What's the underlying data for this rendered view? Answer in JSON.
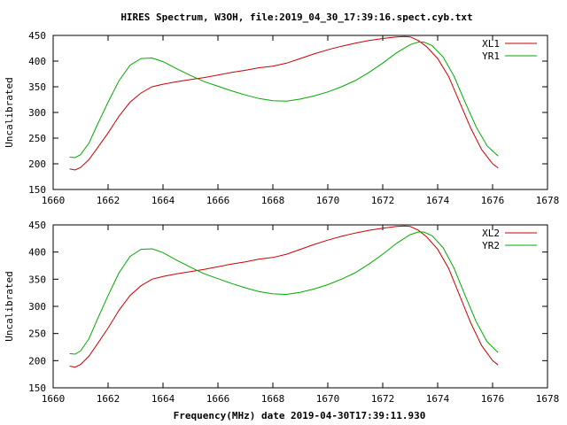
{
  "title": "HIRES Spectrum, W3OH, file:2019_04_30_17:39:16.spect.cyb.txt",
  "xlabel": "Frequency(MHz) date 2019-04-30T17:39:11.930",
  "colors": {
    "red": "#cc0000",
    "green": "#00aa00",
    "axis": "#000000"
  },
  "chart_data": [
    {
      "type": "line",
      "xlim": [
        1660,
        1678
      ],
      "ylim": [
        150,
        450
      ],
      "xticks": [
        1660,
        1662,
        1664,
        1666,
        1668,
        1670,
        1672,
        1674,
        1676,
        1678
      ],
      "yticks": [
        150,
        200,
        250,
        300,
        350,
        400,
        450
      ],
      "ylabel": "Uncalibrated",
      "legend_position": "top-right",
      "grid": false,
      "series": [
        {
          "name": "XL1",
          "color": "#cc0000",
          "x": [
            1660.6,
            1660.8,
            1661.0,
            1661.3,
            1661.6,
            1662.0,
            1662.4,
            1662.8,
            1663.2,
            1663.6,
            1664.0,
            1664.5,
            1665.0,
            1665.5,
            1666.0,
            1666.5,
            1667.0,
            1667.5,
            1668.0,
            1668.5,
            1669.0,
            1669.5,
            1670.0,
            1670.5,
            1671.0,
            1671.5,
            1672.0,
            1672.5,
            1672.8,
            1673.0,
            1673.3,
            1673.6,
            1674.0,
            1674.4,
            1674.8,
            1675.2,
            1675.6,
            1676.0,
            1676.2
          ],
          "y": [
            190,
            188,
            193,
            208,
            230,
            260,
            293,
            320,
            338,
            350,
            355,
            360,
            364,
            368,
            373,
            378,
            382,
            387,
            390,
            396,
            405,
            414,
            422,
            429,
            435,
            440,
            444,
            447,
            448,
            447,
            440,
            428,
            405,
            370,
            320,
            270,
            228,
            200,
            192
          ]
        },
        {
          "name": "YR1",
          "color": "#00aa00",
          "x": [
            1660.6,
            1660.8,
            1661.0,
            1661.3,
            1661.6,
            1662.0,
            1662.4,
            1662.8,
            1663.2,
            1663.6,
            1664.0,
            1664.5,
            1665.0,
            1665.5,
            1666.0,
            1666.5,
            1667.0,
            1667.5,
            1668.0,
            1668.5,
            1669.0,
            1669.5,
            1670.0,
            1670.5,
            1671.0,
            1671.5,
            1672.0,
            1672.5,
            1673.0,
            1673.3,
            1673.5,
            1673.8,
            1674.2,
            1674.6,
            1675.0,
            1675.4,
            1675.8,
            1676.2
          ],
          "y": [
            213,
            212,
            218,
            240,
            275,
            320,
            362,
            392,
            405,
            406,
            399,
            385,
            372,
            360,
            351,
            342,
            334,
            327,
            323,
            322,
            326,
            332,
            340,
            350,
            362,
            378,
            396,
            416,
            432,
            437,
            437,
            430,
            408,
            370,
            320,
            272,
            235,
            215
          ]
        }
      ]
    },
    {
      "type": "line",
      "xlim": [
        1660,
        1678
      ],
      "ylim": [
        150,
        450
      ],
      "xticks": [
        1660,
        1662,
        1664,
        1666,
        1668,
        1670,
        1672,
        1674,
        1676,
        1678
      ],
      "yticks": [
        150,
        200,
        250,
        300,
        350,
        400,
        450
      ],
      "ylabel": "Uncalibrated",
      "legend_position": "top-right",
      "grid": false,
      "series": [
        {
          "name": "XL2",
          "color": "#cc0000",
          "x": [
            1660.6,
            1660.8,
            1661.0,
            1661.3,
            1661.6,
            1662.0,
            1662.4,
            1662.8,
            1663.2,
            1663.6,
            1664.0,
            1664.5,
            1665.0,
            1665.5,
            1666.0,
            1666.5,
            1667.0,
            1667.5,
            1668.0,
            1668.5,
            1669.0,
            1669.5,
            1670.0,
            1670.5,
            1671.0,
            1671.5,
            1672.0,
            1672.5,
            1672.8,
            1673.0,
            1673.3,
            1673.6,
            1674.0,
            1674.4,
            1674.8,
            1675.2,
            1675.6,
            1676.0,
            1676.2
          ],
          "y": [
            190,
            188,
            193,
            208,
            230,
            260,
            293,
            320,
            338,
            350,
            355,
            360,
            364,
            368,
            373,
            378,
            382,
            387,
            390,
            396,
            405,
            414,
            422,
            429,
            435,
            440,
            444,
            447,
            448,
            447,
            440,
            428,
            405,
            370,
            320,
            270,
            228,
            200,
            192
          ]
        },
        {
          "name": "YR2",
          "color": "#00aa00",
          "x": [
            1660.6,
            1660.8,
            1661.0,
            1661.3,
            1661.6,
            1662.0,
            1662.4,
            1662.8,
            1663.2,
            1663.6,
            1664.0,
            1664.5,
            1665.0,
            1665.5,
            1666.0,
            1666.5,
            1667.0,
            1667.5,
            1668.0,
            1668.5,
            1669.0,
            1669.5,
            1670.0,
            1670.5,
            1671.0,
            1671.5,
            1672.0,
            1672.5,
            1673.0,
            1673.3,
            1673.5,
            1673.8,
            1674.2,
            1674.6,
            1675.0,
            1675.4,
            1675.8,
            1676.2
          ],
          "y": [
            213,
            212,
            218,
            240,
            275,
            320,
            362,
            392,
            405,
            406,
            399,
            385,
            372,
            360,
            351,
            342,
            334,
            327,
            323,
            322,
            326,
            332,
            340,
            350,
            362,
            378,
            396,
            416,
            432,
            437,
            437,
            430,
            408,
            370,
            320,
            272,
            235,
            215
          ]
        }
      ]
    }
  ]
}
